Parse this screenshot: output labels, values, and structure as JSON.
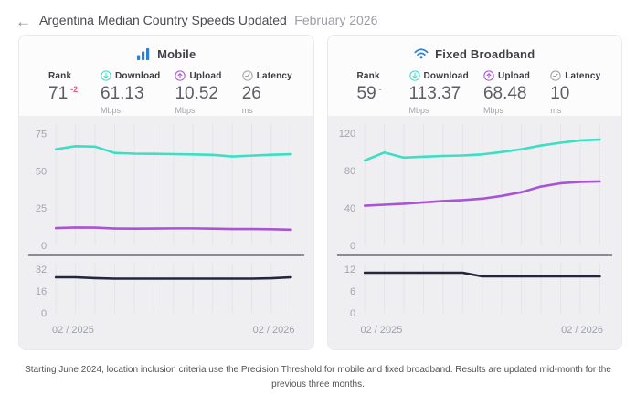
{
  "colors": {
    "teal": "#3cdfc5",
    "purple": "#a854d6",
    "navy": "#23263c",
    "blue": "#2d7fd6",
    "grid": "#e4e4e9",
    "chart_bg": "#efeff2",
    "rank_down": "#ee5b6e",
    "rank_neutral": "#b2b3ba"
  },
  "header": {
    "back_icon": "←",
    "title": "Argentina Median Country Speeds Updated",
    "date": "February 2026"
  },
  "panels": [
    {
      "title": "Mobile",
      "icon": "signal-bars-icon",
      "stats": [
        {
          "label": "Rank",
          "value": "71",
          "change": "-2",
          "change_color": "#ee5b6e"
        },
        {
          "label": "Download",
          "value": "61.13",
          "unit": "Mbps",
          "icon": "download-circle-icon"
        },
        {
          "label": "Upload",
          "value": "10.52",
          "unit": "Mbps",
          "icon": "upload-circle-icon"
        },
        {
          "label": "Latency",
          "value": "26",
          "unit": "ms",
          "icon": "gauge-circle-icon"
        }
      ]
    },
    {
      "title": "Fixed Broadband",
      "icon": "wifi-icon",
      "stats": [
        {
          "label": "Rank",
          "value": "59",
          "change": "-",
          "change_color": "#b2b3ba"
        },
        {
          "label": "Download",
          "value": "113.37",
          "unit": "Mbps",
          "icon": "download-circle-icon"
        },
        {
          "label": "Upload",
          "value": "68.48",
          "unit": "Mbps",
          "icon": "upload-circle-icon"
        },
        {
          "label": "Latency",
          "value": "10",
          "unit": "ms",
          "icon": "gauge-circle-icon"
        }
      ]
    }
  ],
  "chart_data": [
    {
      "id": "mobile-speed",
      "type": "line",
      "panel": "Mobile",
      "ylabel": "Mbps",
      "ylim": [
        0,
        82
      ],
      "yticks": [
        0,
        25,
        50,
        75
      ],
      "x_points": 13,
      "x_start": "02 / 2025",
      "x_end": "02 / 2026",
      "grid": "vertical",
      "series": [
        {
          "name": "Download (Mbps)",
          "color": "#3cdfc5",
          "values": [
            64.5,
            66.5,
            66.2,
            62,
            61.5,
            61.4,
            61.2,
            61,
            60.7,
            59.6,
            60.2,
            60.8,
            61.13
          ]
        },
        {
          "name": "Upload (Mbps)",
          "color": "#a854d6",
          "values": [
            11.6,
            12,
            11.9,
            11.3,
            11.2,
            11.3,
            11.4,
            11.4,
            11.2,
            11,
            11,
            10.8,
            10.52
          ]
        }
      ]
    },
    {
      "id": "mobile-latency",
      "type": "line",
      "panel": "Mobile",
      "ylabel": "ms",
      "ylim": [
        0,
        36
      ],
      "yticks": [
        0,
        16,
        32
      ],
      "x_points": 13,
      "x_start": "02 / 2025",
      "x_end": "02 / 2026",
      "grid": "vertical",
      "series": [
        {
          "name": "Latency (ms)",
          "color": "#23263c",
          "values": [
            26,
            26,
            25.4,
            25,
            25,
            25,
            25,
            25,
            25,
            25,
            25,
            25.3,
            26
          ]
        }
      ]
    },
    {
      "id": "fixed-speed",
      "type": "line",
      "panel": "Fixed Broadband",
      "ylabel": "Mbps",
      "ylim": [
        0,
        131
      ],
      "yticks": [
        0,
        40,
        80,
        120
      ],
      "x_points": 13,
      "x_start": "02 / 2025",
      "x_end": "02 / 2026",
      "grid": "vertical",
      "series": [
        {
          "name": "Download (Mbps)",
          "color": "#3cdfc5",
          "values": [
            91,
            99.5,
            94,
            95,
            95.8,
            96.3,
            97.5,
            100,
            103,
            107,
            110,
            112.5,
            113.37
          ]
        },
        {
          "name": "Upload (Mbps)",
          "color": "#a854d6",
          "values": [
            42.5,
            43.5,
            44.5,
            46,
            47.5,
            48.5,
            50,
            53,
            57,
            63,
            66.5,
            68,
            68.48
          ]
        }
      ]
    },
    {
      "id": "fixed-latency",
      "type": "line",
      "panel": "Fixed Broadband",
      "ylabel": "ms",
      "ylim": [
        0,
        13.5
      ],
      "yticks": [
        0,
        6,
        12
      ],
      "x_points": 13,
      "x_start": "02 / 2025",
      "x_end": "02 / 2026",
      "grid": "vertical",
      "series": [
        {
          "name": "Latency (ms)",
          "color": "#23263c",
          "values": [
            11,
            11,
            11,
            11,
            11,
            11,
            10,
            10,
            10,
            10,
            10,
            10,
            10
          ]
        }
      ]
    }
  ],
  "footer": {
    "text": "Starting June 2024, location inclusion criteria use the Precision Threshold for mobile and fixed broadband. Results are updated mid-month for the previous three months."
  }
}
